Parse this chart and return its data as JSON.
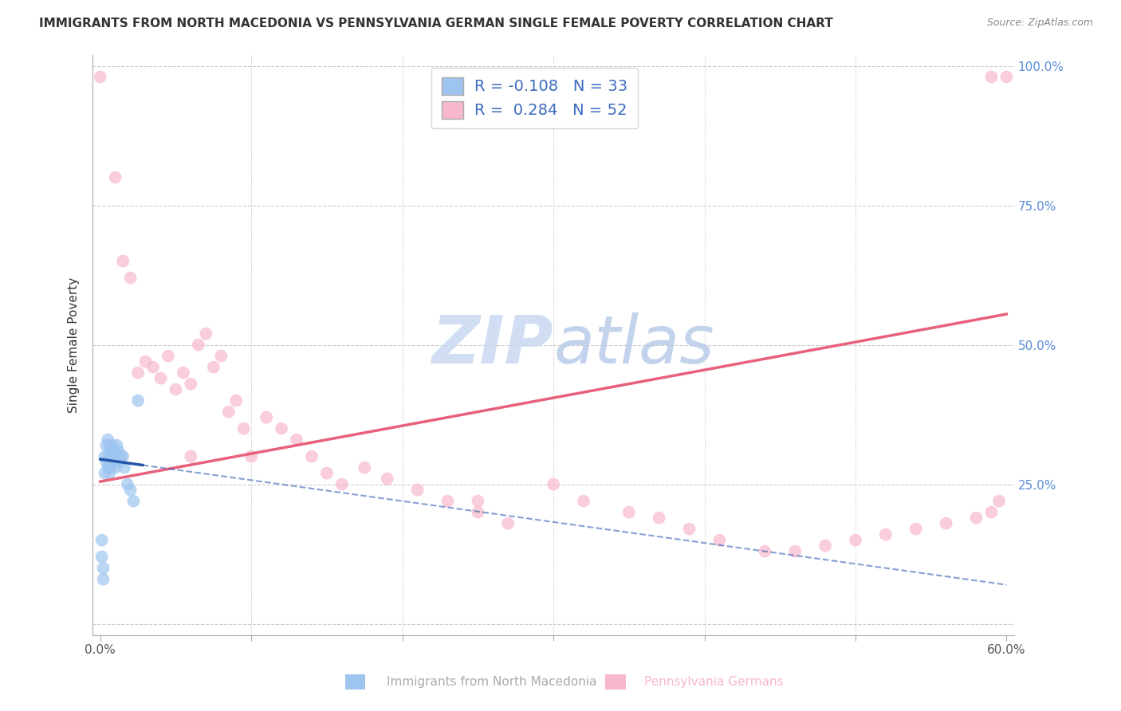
{
  "title": "IMMIGRANTS FROM NORTH MACEDONIA VS PENNSYLVANIA GERMAN SINGLE FEMALE POVERTY CORRELATION CHART",
  "source": "Source: ZipAtlas.com",
  "ylabel": "Single Female Poverty",
  "xlim": [
    -0.005,
    0.605
  ],
  "ylim": [
    -0.02,
    1.02
  ],
  "R_blue": -0.108,
  "N_blue": 33,
  "R_pink": 0.284,
  "N_pink": 52,
  "blue_scatter_x": [
    0.001,
    0.001,
    0.002,
    0.002,
    0.003,
    0.003,
    0.004,
    0.004,
    0.005,
    0.005,
    0.005,
    0.006,
    0.006,
    0.006,
    0.007,
    0.007,
    0.007,
    0.008,
    0.008,
    0.009,
    0.009,
    0.01,
    0.01,
    0.011,
    0.012,
    0.013,
    0.014,
    0.015,
    0.016,
    0.018,
    0.02,
    0.022,
    0.025
  ],
  "blue_scatter_y": [
    0.15,
    0.12,
    0.08,
    0.1,
    0.3,
    0.27,
    0.32,
    0.29,
    0.33,
    0.3,
    0.28,
    0.32,
    0.29,
    0.27,
    0.31,
    0.3,
    0.28,
    0.32,
    0.3,
    0.29,
    0.31,
    0.3,
    0.28,
    0.32,
    0.31,
    0.29,
    0.3,
    0.3,
    0.28,
    0.25,
    0.24,
    0.22,
    0.4
  ],
  "pink_scatter_x": [
    0.0,
    0.01,
    0.015,
    0.02,
    0.025,
    0.03,
    0.035,
    0.04,
    0.045,
    0.05,
    0.055,
    0.06,
    0.065,
    0.07,
    0.075,
    0.08,
    0.085,
    0.09,
    0.095,
    0.1,
    0.11,
    0.12,
    0.13,
    0.14,
    0.15,
    0.16,
    0.175,
    0.19,
    0.21,
    0.23,
    0.25,
    0.27,
    0.3,
    0.32,
    0.35,
    0.37,
    0.39,
    0.41,
    0.44,
    0.46,
    0.48,
    0.5,
    0.52,
    0.54,
    0.56,
    0.58,
    0.59,
    0.595,
    0.6,
    0.06,
    0.25,
    0.59
  ],
  "pink_scatter_y": [
    0.98,
    0.8,
    0.65,
    0.62,
    0.45,
    0.47,
    0.46,
    0.44,
    0.48,
    0.42,
    0.45,
    0.43,
    0.5,
    0.52,
    0.46,
    0.48,
    0.38,
    0.4,
    0.35,
    0.3,
    0.37,
    0.35,
    0.33,
    0.3,
    0.27,
    0.25,
    0.28,
    0.26,
    0.24,
    0.22,
    0.2,
    0.18,
    0.25,
    0.22,
    0.2,
    0.19,
    0.17,
    0.15,
    0.13,
    0.13,
    0.14,
    0.15,
    0.16,
    0.17,
    0.18,
    0.19,
    0.2,
    0.22,
    0.98,
    0.3,
    0.22,
    0.98
  ],
  "blue_color": "#9ec5ef",
  "pink_color": "#f7b8cc",
  "blue_line_color": "#2255aa",
  "pink_line_color": "#e8607a",
  "watermark": "ZIPatlas",
  "watermark_color": "#c8d8f0",
  "background_color": "#ffffff",
  "grid_color": "#cccccc"
}
